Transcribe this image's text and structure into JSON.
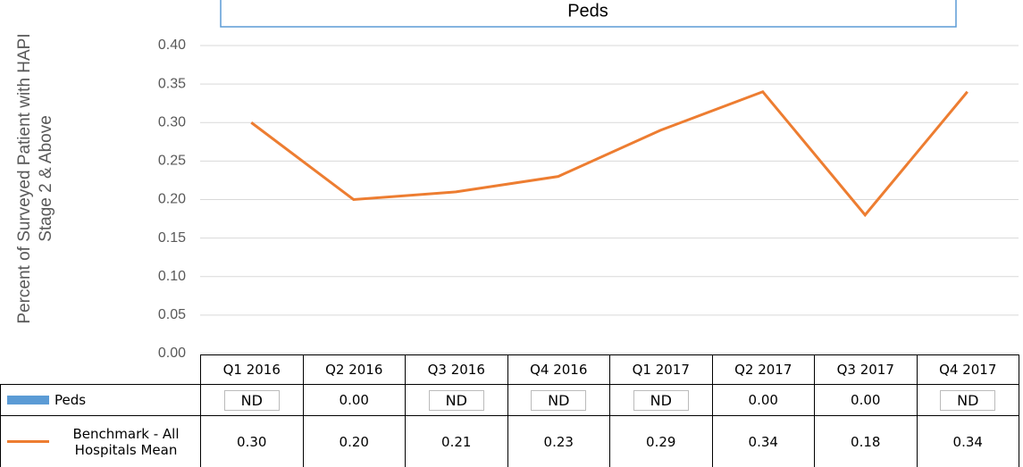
{
  "chart_data": {
    "type": "line",
    "title": "Peds",
    "y_label": [
      "Percent of Surveyed Patient with HAPI",
      "Stage 2 & Above"
    ],
    "categories": [
      "Q1 2016",
      "Q2 2016",
      "Q3 2016",
      "Q4 2016",
      "Q1 2017",
      "Q2 2017",
      "Q3 2017",
      "Q4 2017"
    ],
    "series": [
      {
        "name": "Peds",
        "color": "#5b9bd5",
        "values": [
          null,
          0,
          null,
          null,
          null,
          0,
          0,
          null
        ],
        "value_labels": [
          "ND",
          "0.00",
          "ND",
          "ND",
          "ND",
          "0.00",
          "0.00",
          "ND"
        ]
      },
      {
        "name": "Benchmark - All Hospitals Mean",
        "color": "#ed7d31",
        "values": [
          0.3,
          0.2,
          0.21,
          0.23,
          0.29,
          0.34,
          0.18,
          0.34
        ],
        "value_labels": [
          "0.30",
          "0.20",
          "0.21",
          "0.23",
          "0.29",
          "0.34",
          "0.18",
          "0.34"
        ]
      }
    ],
    "ylim": [
      0,
      0.4
    ],
    "yticks": [
      {
        "value": 0,
        "label": "0.00"
      },
      {
        "value": 0.05,
        "label": "0.05"
      },
      {
        "value": 0.1,
        "label": "0.10"
      },
      {
        "value": 0.15,
        "label": "0.15"
      },
      {
        "value": 0.2,
        "label": "0.20"
      },
      {
        "value": 0.25,
        "label": "0.25"
      },
      {
        "value": 0.3,
        "label": "0.30"
      },
      {
        "value": 0.35,
        "label": "0.35"
      },
      {
        "value": 0.4,
        "label": "0.40"
      }
    ],
    "grid": true
  }
}
